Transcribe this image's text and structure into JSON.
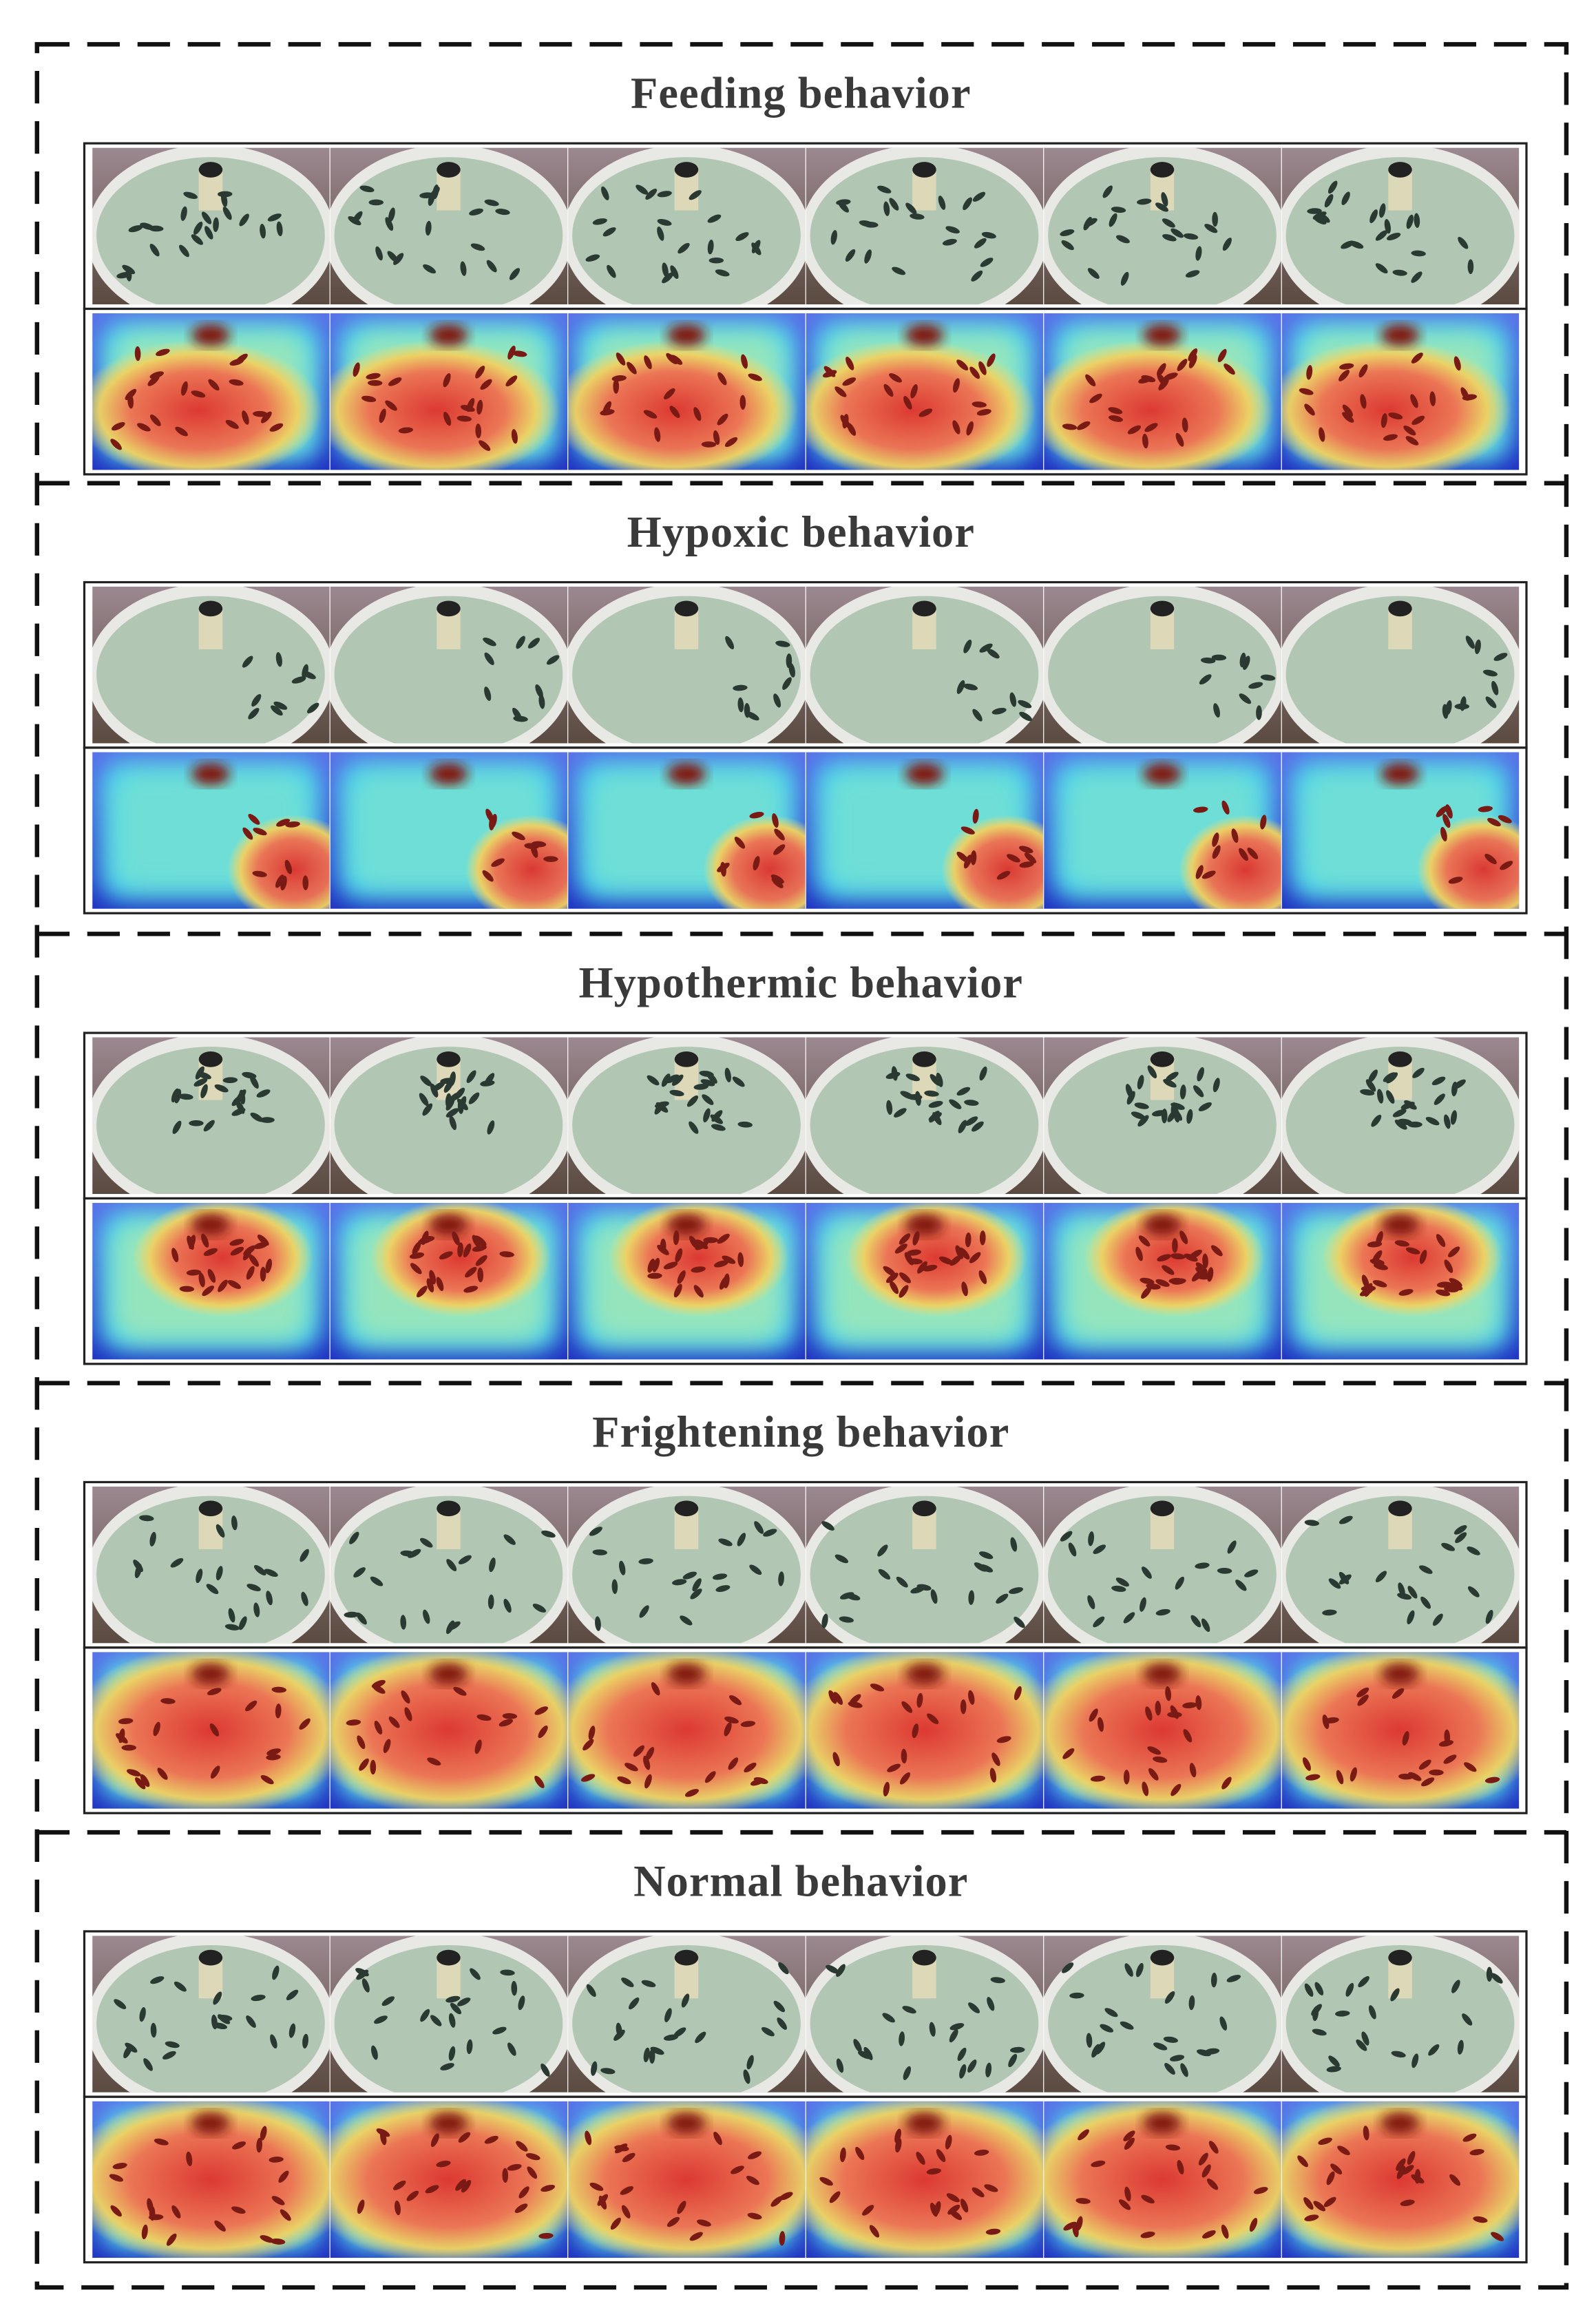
{
  "sections": [
    {
      "title": "Feeding behavior"
    },
    {
      "title": "Hypoxic behavior"
    },
    {
      "title": "Hypothermic behavior"
    },
    {
      "title": "Frightening behavior"
    },
    {
      "title": "Normal behavior"
    }
  ]
}
